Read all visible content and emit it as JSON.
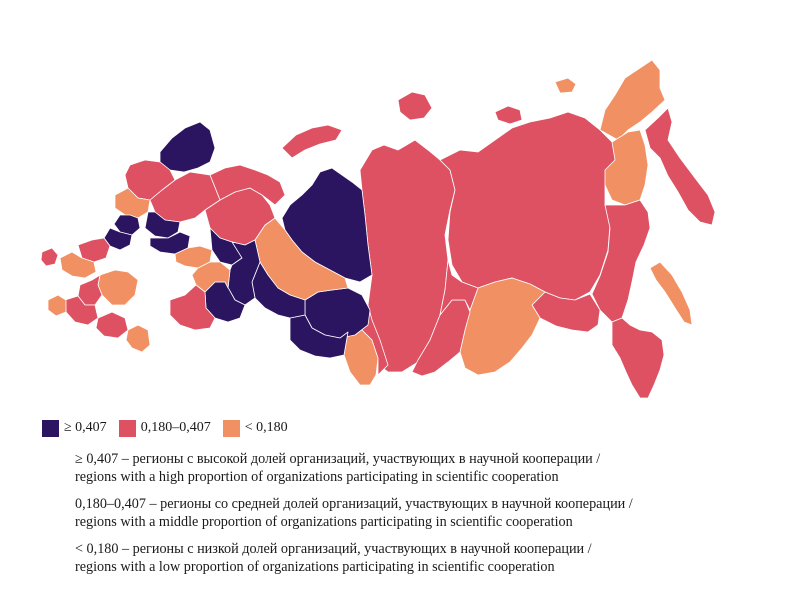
{
  "colors": {
    "high": "#2b1560",
    "middle": "#de5163",
    "low": "#f19063"
  },
  "legend": [
    {
      "class": "high",
      "label": "≥ 0,407"
    },
    {
      "class": "middle",
      "label": "0,180–0,407"
    },
    {
      "class": "low",
      "label": "< 0,180"
    }
  ],
  "notes": [
    {
      "ru": "≥ 0,407 – регионы с высокой долей организаций, участвующих в научной кооперации /",
      "en": "regions with a high proportion of organizations participating in scientific cooperation"
    },
    {
      "ru": "0,180–0,407 – регионы со средней долей организаций, участвующих в научной кооперации /",
      "en": "regions with a middle proportion of organizations participating in scientific cooperation"
    },
    {
      "ru": "< 0,180 – регионы с низкой долей организаций, участвующих в научной кооперации /",
      "en": "regions with a low proportion of organizations participating in scientific cooperation"
    }
  ],
  "map": {
    "regions": [
      {
        "name": "kaliningrad",
        "class": "middle"
      },
      {
        "name": "murmansk",
        "class": "high"
      },
      {
        "name": "karelia",
        "class": "middle"
      },
      {
        "name": "leningrad",
        "class": "low"
      },
      {
        "name": "arkhangelsk",
        "class": "middle"
      },
      {
        "name": "komi",
        "class": "middle"
      },
      {
        "name": "nenets",
        "class": "middle"
      },
      {
        "name": "yamal-nenets",
        "class": "high"
      },
      {
        "name": "khanty-mansi",
        "class": "low"
      },
      {
        "name": "tyumen",
        "class": "high"
      },
      {
        "name": "tomsk",
        "class": "high"
      },
      {
        "name": "novosibirsk",
        "class": "high"
      },
      {
        "name": "krasnoyarsk",
        "class": "middle"
      },
      {
        "name": "sakha-yakutia",
        "class": "middle"
      },
      {
        "name": "chukotka",
        "class": "low"
      },
      {
        "name": "magadan",
        "class": "low"
      },
      {
        "name": "kamchatka",
        "class": "middle"
      },
      {
        "name": "khabarovsk",
        "class": "middle"
      },
      {
        "name": "amur",
        "class": "middle"
      },
      {
        "name": "zabaykalsky",
        "class": "low"
      },
      {
        "name": "buryatia",
        "class": "middle"
      },
      {
        "name": "irkutsk",
        "class": "middle"
      },
      {
        "name": "altai",
        "class": "low"
      },
      {
        "name": "kemerovo",
        "class": "middle"
      },
      {
        "name": "sakhalin",
        "class": "low"
      },
      {
        "name": "primorsky",
        "class": "middle"
      },
      {
        "name": "moscow",
        "class": "high"
      },
      {
        "name": "yaroslavl",
        "class": "high"
      },
      {
        "name": "nizhny-novgorod",
        "class": "high"
      },
      {
        "name": "vologda",
        "class": "high"
      },
      {
        "name": "tatarstan",
        "class": "low"
      },
      {
        "name": "sverdlovsk",
        "class": "high"
      },
      {
        "name": "perm",
        "class": "high"
      },
      {
        "name": "chelyabinsk",
        "class": "high"
      },
      {
        "name": "bashkortostan",
        "class": "low"
      },
      {
        "name": "orenburg",
        "class": "middle"
      },
      {
        "name": "volgograd",
        "class": "low"
      },
      {
        "name": "rostov",
        "class": "middle"
      },
      {
        "name": "krasnodar",
        "class": "middle"
      },
      {
        "name": "crimea",
        "class": "low"
      },
      {
        "name": "stavropol",
        "class": "middle"
      },
      {
        "name": "dagestan",
        "class": "low"
      },
      {
        "name": "belgorod",
        "class": "middle"
      },
      {
        "name": "kursk",
        "class": "low"
      }
    ]
  }
}
